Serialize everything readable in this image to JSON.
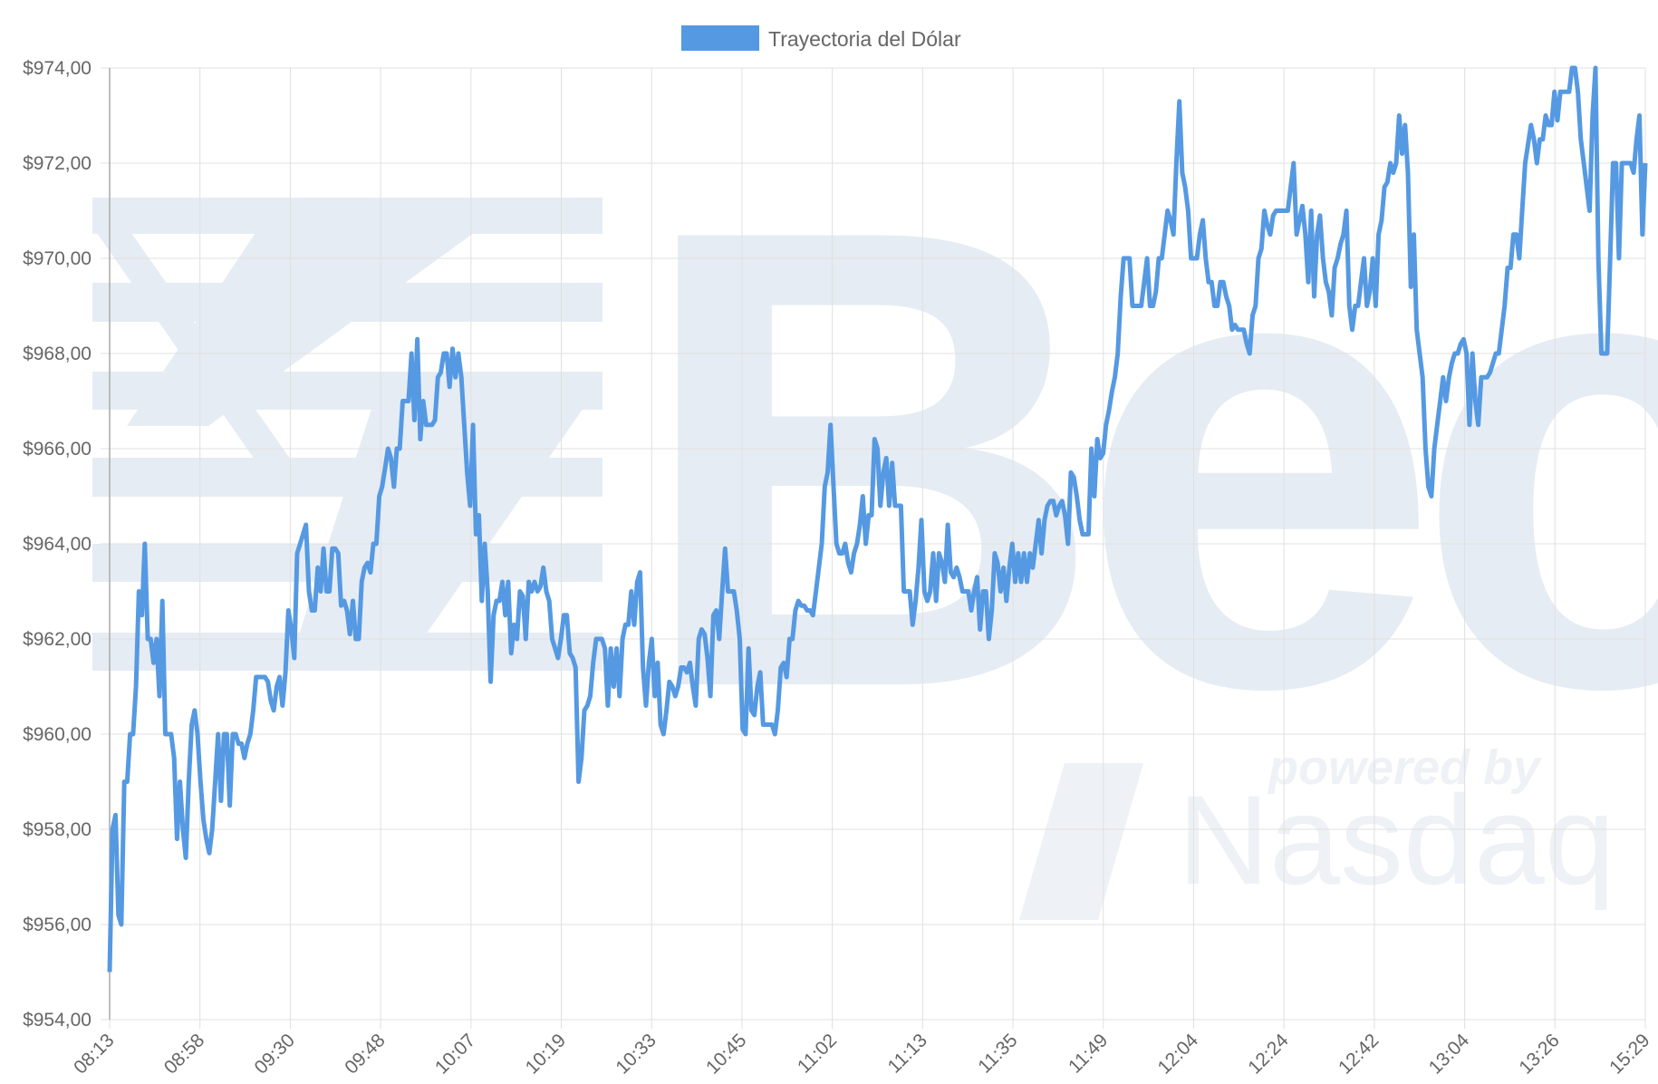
{
  "chart_data": {
    "type": "line",
    "title": "",
    "xlabel": "",
    "ylabel": "",
    "ylim": [
      954,
      974
    ],
    "y_ticks": [
      "$954,00",
      "$956,00",
      "$958,00",
      "$960,00",
      "$962,00",
      "$964,00",
      "$966,00",
      "$968,00",
      "$970,00",
      "$972,00",
      "$974,00"
    ],
    "x_ticks": [
      "08:13",
      "08:58",
      "09:30",
      "09:48",
      "10:07",
      "10:19",
      "10:33",
      "10:45",
      "11:02",
      "11:13",
      "11:35",
      "11:49",
      "12:04",
      "12:24",
      "12:42",
      "13:04",
      "13:26",
      "15:29"
    ],
    "grid": true,
    "legend": "top-center",
    "colors": {
      "line": "#5599e2",
      "grid": "#e0e0e0",
      "watermark": "#e6ecf3"
    },
    "watermark": {
      "brand": "Bec",
      "tagline": "powered by",
      "partner": "Nasdaq"
    },
    "series": [
      {
        "name": "Trayectoria del Dólar",
        "values": [
          955.0,
          958.0,
          958.3,
          956.2,
          956.0,
          959.0,
          959.0,
          960.0,
          960.0,
          961.0,
          963.0,
          962.5,
          964.0,
          962.0,
          962.0,
          961.5,
          962.0,
          960.8,
          962.8,
          960.0,
          960.0,
          960.0,
          959.5,
          957.8,
          959.0,
          958.0,
          957.4,
          959.0,
          960.2,
          960.5,
          960.0,
          959.0,
          958.2,
          957.8,
          957.5,
          958.0,
          959.0,
          960.0,
          958.6,
          960.0,
          960.0,
          958.5,
          960.0,
          960.0,
          959.8,
          959.8,
          959.5,
          959.8,
          960.0,
          960.5,
          961.2,
          961.2,
          961.2,
          961.2,
          961.1,
          960.7,
          960.5,
          961.0,
          961.2,
          960.6,
          961.3,
          962.6,
          962.2,
          961.6,
          963.8,
          964.0,
          964.2,
          964.4,
          963.0,
          962.6,
          962.6,
          963.5,
          963.0,
          963.9,
          963.0,
          963.0,
          963.9,
          963.9,
          963.8,
          962.7,
          962.8,
          962.6,
          962.1,
          962.8,
          962.0,
          962.0,
          963.2,
          963.5,
          963.6,
          963.4,
          964.0,
          964.0,
          965.0,
          965.2,
          965.6,
          966.0,
          965.8,
          965.2,
          966.0,
          966.0,
          967.0,
          967.0,
          967.0,
          968.0,
          966.6,
          968.3,
          966.2,
          967.0,
          966.5,
          966.5,
          966.5,
          966.6,
          967.5,
          967.6,
          968.0,
          968.0,
          967.3,
          968.1,
          967.5,
          968.0,
          967.5,
          966.5,
          965.5,
          964.8,
          966.5,
          964.2,
          964.6,
          962.8,
          964.0,
          963.0,
          961.1,
          962.5,
          962.8,
          962.8,
          963.2,
          962.5,
          963.2,
          961.7,
          962.3,
          962.0,
          963.0,
          962.9,
          962.0,
          963.2,
          963.0,
          963.2,
          963.0,
          963.1,
          963.5,
          963.0,
          962.8,
          962.0,
          961.8,
          961.6,
          962.0,
          962.5,
          962.5,
          961.7,
          961.6,
          961.4,
          959.0,
          959.5,
          960.5,
          960.6,
          960.8,
          961.5,
          962.0,
          962.0,
          962.0,
          961.8,
          960.6,
          961.8,
          961.0,
          961.8,
          960.8,
          962.0,
          962.3,
          962.3,
          963.0,
          962.3,
          963.2,
          963.4,
          961.4,
          960.6,
          961.5,
          962.0,
          960.8,
          961.5,
          960.2,
          960.0,
          960.5,
          961.1,
          961.0,
          960.8,
          961.0,
          961.4,
          961.4,
          961.3,
          961.5,
          961.0,
          960.6,
          962.0,
          962.2,
          962.1,
          961.6,
          960.8,
          962.5,
          962.6,
          962.0,
          963.0,
          963.9,
          963.0,
          963.0,
          963.0,
          962.6,
          962.0,
          960.1,
          960.0,
          961.8,
          960.5,
          960.4,
          961.0,
          961.3,
          960.2,
          960.2,
          960.2,
          960.2,
          960.0,
          960.5,
          961.4,
          961.5,
          961.2,
          962.0,
          962.0,
          962.6,
          962.8,
          962.7,
          962.7,
          962.6,
          962.6,
          962.5,
          963.0,
          963.5,
          964.0,
          965.2,
          965.5,
          966.5,
          965.2,
          964.0,
          963.8,
          963.8,
          964.0,
          963.6,
          963.4,
          963.8,
          964.0,
          964.4,
          965.0,
          964.0,
          964.6,
          964.6,
          966.2,
          966.0,
          964.8,
          965.5,
          965.8,
          964.8,
          965.7,
          964.8,
          964.8,
          964.8,
          963.0,
          963.0,
          963.0,
          962.3,
          962.8,
          963.5,
          964.5,
          963.0,
          962.8,
          963.0,
          963.8,
          962.8,
          963.8,
          963.6,
          963.2,
          964.4,
          963.4,
          963.3,
          963.5,
          963.3,
          963.0,
          963.0,
          963.0,
          962.6,
          963.0,
          963.3,
          962.2,
          963.0,
          963.0,
          962.0,
          962.6,
          963.8,
          963.6,
          963.0,
          963.5,
          962.8,
          963.5,
          964.0,
          963.2,
          963.8,
          963.2,
          963.8,
          963.2,
          963.8,
          963.5,
          964.0,
          964.5,
          963.8,
          964.5,
          964.8,
          964.9,
          964.9,
          964.6,
          964.8,
          964.9,
          964.6,
          964.0,
          965.5,
          965.4,
          965.0,
          964.5,
          964.2,
          964.2,
          964.2,
          966.0,
          965.0,
          966.2,
          965.8,
          965.9,
          966.5,
          966.8,
          967.2,
          967.5,
          968.0,
          969.2,
          970.0,
          970.0,
          970.0,
          969.0,
          969.0,
          969.0,
          969.0,
          969.5,
          970.0,
          969.0,
          969.0,
          969.3,
          970.0,
          970.0,
          970.5,
          971.0,
          970.8,
          970.5,
          972.0,
          973.3,
          971.8,
          971.5,
          971.0,
          970.0,
          970.0,
          970.0,
          970.5,
          970.8,
          970.0,
          969.5,
          969.5,
          969.0,
          969.0,
          969.5,
          969.5,
          969.2,
          969.0,
          968.5,
          968.6,
          968.5,
          968.5,
          968.5,
          968.2,
          968.0,
          968.8,
          969.0,
          970.0,
          970.2,
          971.0,
          970.7,
          970.5,
          970.9,
          971.0,
          971.0,
          971.0,
          971.0,
          971.0,
          971.5,
          972.0,
          970.5,
          970.8,
          971.1,
          970.5,
          969.5,
          971.0,
          969.2,
          970.5,
          970.9,
          970.0,
          969.5,
          969.3,
          968.8,
          969.8,
          970.0,
          970.3,
          970.5,
          971.0,
          969.0,
          968.5,
          969.0,
          969.0,
          969.5,
          970.0,
          969.0,
          969.3,
          970.0,
          969.0,
          970.5,
          970.8,
          971.5,
          971.6,
          972.0,
          971.8,
          972.0,
          973.0,
          972.2,
          972.8,
          971.8,
          969.4,
          970.5,
          968.5,
          968.0,
          967.5,
          966.0,
          965.2,
          965.0,
          966.0,
          966.5,
          967.0,
          967.5,
          967.0,
          967.5,
          967.8,
          968.0,
          968.0,
          968.2,
          968.3,
          968.0,
          966.5,
          968.0,
          967.0,
          966.5,
          967.5,
          967.5,
          967.5,
          967.6,
          967.8,
          968.0,
          968.0,
          968.5,
          969.0,
          969.8,
          969.8,
          970.5,
          970.5,
          970.0,
          971.0,
          972.0,
          972.4,
          972.8,
          972.5,
          972.0,
          972.5,
          972.5,
          973.0,
          972.8,
          972.8,
          973.5,
          972.9,
          973.5,
          973.5,
          973.5,
          973.5,
          974.0,
          974.0,
          973.5,
          972.5,
          972.0,
          971.5,
          971.0,
          973.0,
          974.0,
          970.0,
          968.0,
          968.0,
          968.0,
          970.0,
          972.0,
          972.0,
          970.0,
          972.0,
          972.0,
          972.0,
          972.0,
          971.8,
          972.5,
          973.0,
          970.5,
          972.0
        ]
      }
    ]
  }
}
